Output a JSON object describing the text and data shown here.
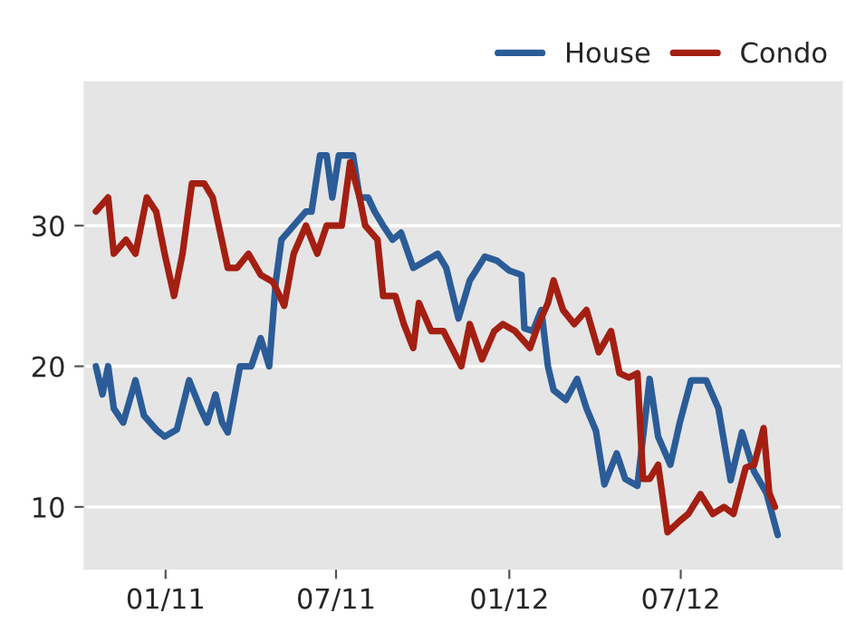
{
  "chart_data": {
    "type": "line",
    "xlim": [
      "2010-10-07",
      "2012-12-19"
    ],
    "xticks": [
      {
        "value": "2011-01-01",
        "label": "01/11"
      },
      {
        "value": "2011-07-01",
        "label": "07/11"
      },
      {
        "value": "2012-01-01",
        "label": "01/12"
      },
      {
        "value": "2012-07-01",
        "label": "07/12"
      }
    ],
    "ylim": [
      5.6,
      40.2
    ],
    "yticks": [
      10,
      20,
      30
    ],
    "grid": "y",
    "legend": "top right",
    "line_style": "solid",
    "series": [
      {
        "name": "House",
        "color": "#2b5c98",
        "x": [
          "2010-10-19",
          "2010-10-26",
          "2010-11-01",
          "2010-11-07",
          "2010-11-17",
          "2010-11-30",
          "2010-12-09",
          "2010-12-22",
          "2010-12-31",
          "2011-01-13",
          "2011-01-26",
          "2011-02-07",
          "2011-02-14",
          "2011-02-23",
          "2011-03-02",
          "2011-03-08",
          "2011-03-21",
          "2011-04-02",
          "2011-04-12",
          "2011-04-21",
          "2011-04-28",
          "2011-05-04",
          "2011-05-17",
          "2011-05-30",
          "2011-06-05",
          "2011-06-14",
          "2011-06-21",
          "2011-06-27",
          "2011-07-04",
          "2011-07-19",
          "2011-07-26",
          "2011-08-04",
          "2011-08-11",
          "2011-08-20",
          "2011-08-30",
          "2011-09-08",
          "2011-09-21",
          "2011-10-04",
          "2011-10-17",
          "2011-10-26",
          "2011-11-08",
          "2011-11-20",
          "2011-12-06",
          "2011-12-19",
          "2012-01-01",
          "2012-01-14",
          "2012-01-17",
          "2012-01-26",
          "2012-02-04",
          "2012-02-11",
          "2012-02-17",
          "2012-03-01",
          "2012-03-13",
          "2012-03-23",
          "2012-04-02",
          "2012-04-11",
          "2012-04-24",
          "2012-05-03",
          "2012-05-16",
          "2012-05-29",
          "2012-06-07",
          "2012-06-20",
          "2012-06-30",
          "2012-07-12",
          "2012-07-28",
          "2012-08-10",
          "2012-08-23",
          "2012-09-04",
          "2012-09-17",
          "2012-09-30",
          "2012-10-12"
        ],
        "values": [
          20,
          18,
          20,
          17,
          16,
          19,
          16.5,
          15.5,
          15,
          15.5,
          19,
          17,
          16,
          18,
          16,
          15.3,
          20,
          20,
          22,
          20,
          26,
          29,
          30,
          31,
          31,
          35,
          35,
          32,
          35,
          35,
          32,
          32,
          31,
          30,
          29,
          29.5,
          27,
          27.5,
          28,
          27,
          23.4,
          26.1,
          27.8,
          27.5,
          26.8,
          26.5,
          22.7,
          22.5,
          24,
          20,
          18.3,
          17.6,
          19.1,
          17,
          15.4,
          11.6,
          13.8,
          12,
          11.5,
          19.1,
          15,
          13,
          16,
          19,
          19,
          17,
          11.9,
          15.3,
          12.5,
          11,
          8
        ]
      },
      {
        "name": "Condo",
        "color": "#a31f12",
        "x": [
          "2010-10-19",
          "2010-11-01",
          "2010-11-07",
          "2010-11-20",
          "2010-11-30",
          "2010-12-12",
          "2010-12-22",
          "2010-12-31",
          "2011-01-10",
          "2011-01-19",
          "2011-01-29",
          "2011-02-11",
          "2011-02-20",
          "2011-03-08",
          "2011-03-18",
          "2011-03-30",
          "2011-04-12",
          "2011-04-25",
          "2011-05-07",
          "2011-05-17",
          "2011-05-30",
          "2011-06-11",
          "2011-06-21",
          "2011-07-07",
          "2011-07-16",
          "2011-07-26",
          "2011-08-01",
          "2011-08-14",
          "2011-08-20",
          "2011-09-02",
          "2011-09-11",
          "2011-09-21",
          "2011-09-27",
          "2011-10-10",
          "2011-10-23",
          "2011-11-11",
          "2011-11-20",
          "2011-12-03",
          "2011-12-16",
          "2011-12-25",
          "2012-01-07",
          "2012-01-23",
          "2012-02-01",
          "2012-02-11",
          "2012-02-17",
          "2012-02-27",
          "2012-03-10",
          "2012-03-23",
          "2012-04-05",
          "2012-04-18",
          "2012-04-27",
          "2012-05-07",
          "2012-05-16",
          "2012-05-22",
          "2012-05-29",
          "2012-06-07",
          "2012-06-17",
          "2012-06-30",
          "2012-07-09",
          "2012-07-22",
          "2012-08-04",
          "2012-08-16",
          "2012-08-26",
          "2012-09-08",
          "2012-09-17",
          "2012-09-27",
          "2012-10-03",
          "2012-10-09"
        ],
        "values": [
          31,
          32,
          28,
          29,
          28,
          32,
          31,
          28,
          25,
          28,
          33,
          33,
          32,
          27,
          27,
          28,
          26.5,
          26,
          24.3,
          28,
          30,
          28,
          30,
          30,
          34.5,
          32,
          30,
          29,
          25,
          25,
          23,
          21.3,
          24.5,
          22.5,
          22.5,
          20,
          23,
          20.5,
          22.5,
          23,
          22.5,
          21.3,
          23,
          24.5,
          26.1,
          24,
          23,
          24,
          21,
          22.5,
          19.5,
          19.2,
          19.5,
          12,
          12,
          13,
          8.2,
          9,
          9.5,
          10.9,
          9.5,
          10,
          9.5,
          12.8,
          13,
          15.6,
          11,
          10
        ]
      }
    ]
  }
}
